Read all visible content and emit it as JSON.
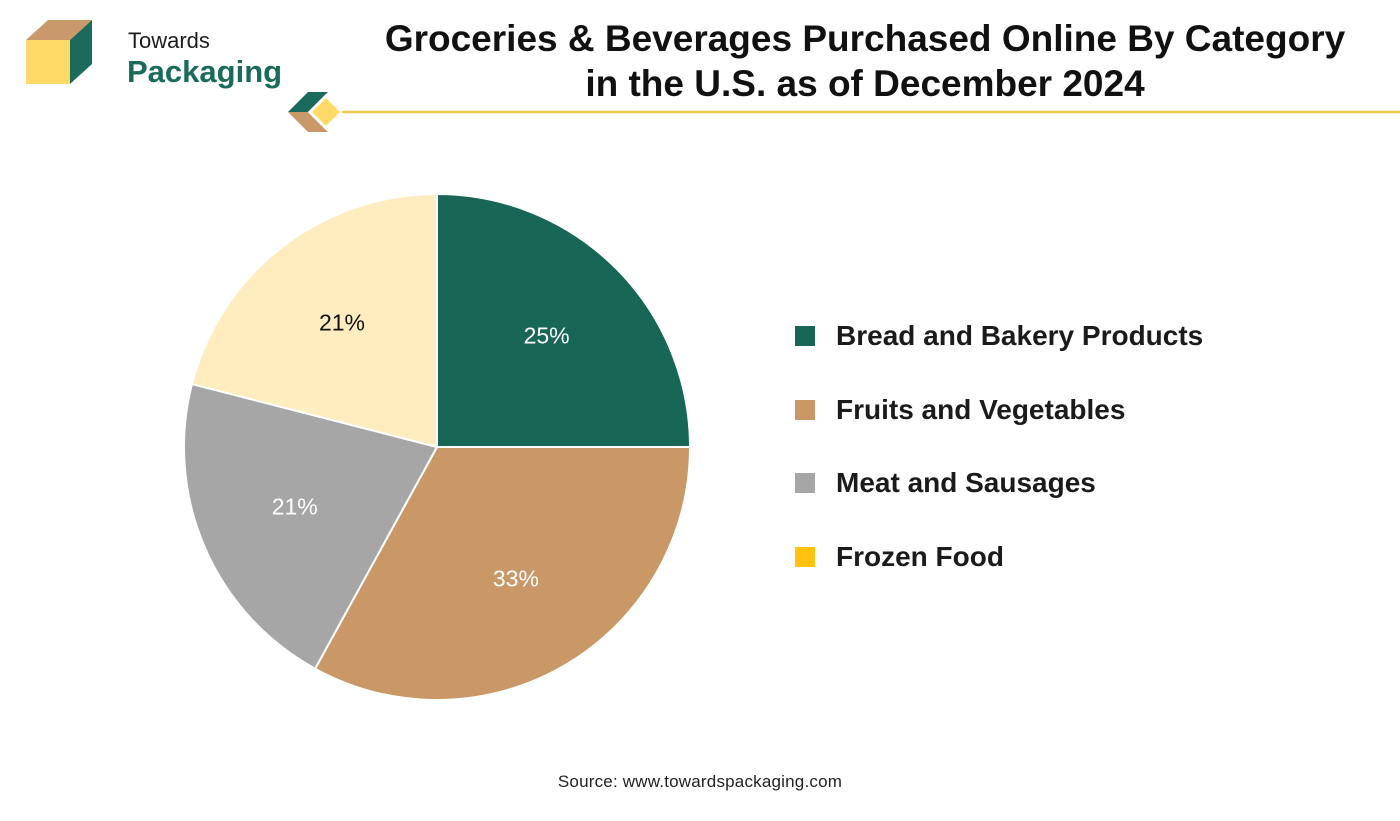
{
  "brand": {
    "line1": "Towards",
    "line2": "Packaging",
    "colors": {
      "green": "#1a6b5b",
      "tan": "#c9996a",
      "yellow": "#ffd966"
    }
  },
  "chart_data": {
    "type": "pie",
    "title": "Groceries & Beverages Purchased Online By Category in the U.S. as of December 2024",
    "title_lines": [
      "Groceries & Beverages Purchased Online By Category",
      "in the U.S. as of December 2024"
    ],
    "categories": [
      "Bread and Bakery Products",
      "Fruits and Vegetables",
      "Meat and Sausages",
      "Frozen Food"
    ],
    "values": [
      25,
      33,
      21,
      21
    ],
    "labels": [
      "25%",
      "33%",
      "21%",
      "21%"
    ],
    "colors": [
      "#186656",
      "#c99866",
      "#a6a6a6",
      "#ffedbf"
    ],
    "legend_colors": [
      "#186656",
      "#c99866",
      "#a6a6a6",
      "#ffc20e"
    ],
    "label_colors": [
      "#ffffff",
      "#ffffff",
      "#ffffff",
      "#111111"
    ],
    "start": "12 o'clock, clockwise",
    "legend_position": "right"
  },
  "source": "Source: www.towardspackaging.com"
}
